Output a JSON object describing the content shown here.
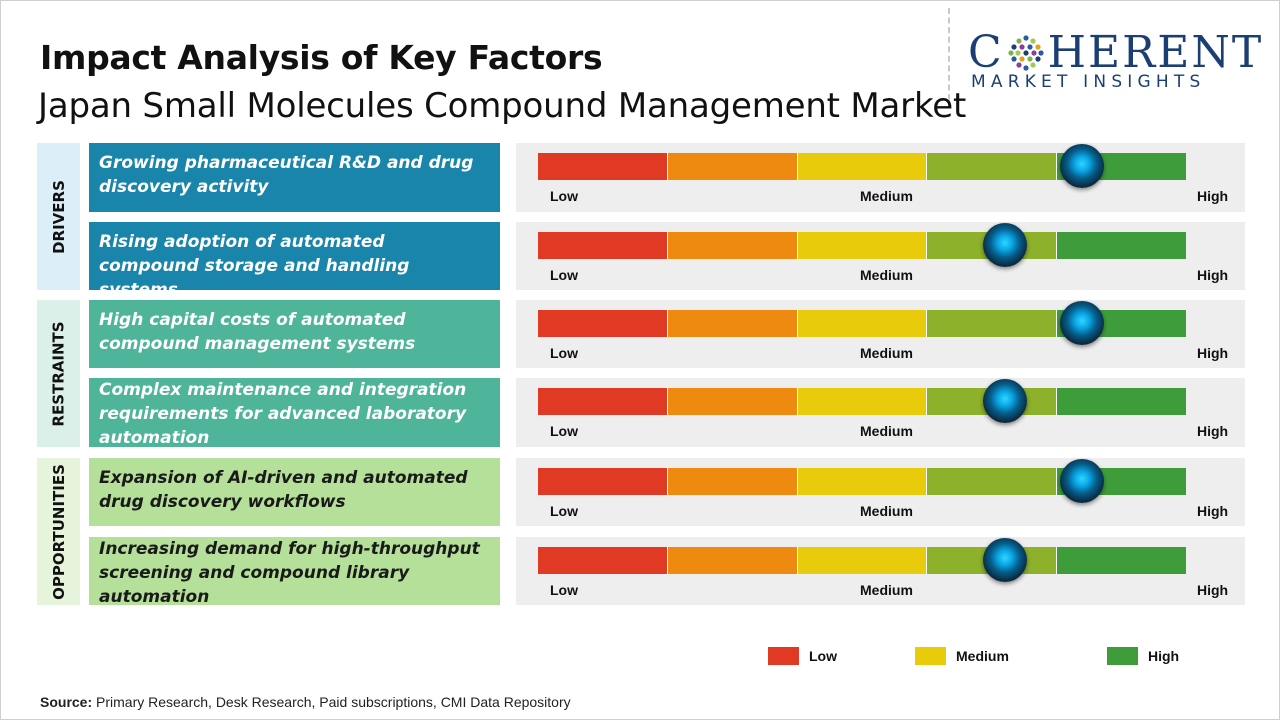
{
  "header": {
    "title": "Impact Analysis of Key Factors",
    "subtitle": "Japan Small Molecules Compound Management Market"
  },
  "logo": {
    "word_part1": "C",
    "word_part2": "HERENT",
    "tagline": "MARKET INSIGHTS"
  },
  "categories": [
    {
      "label": "DRIVERS",
      "color": "#dceef7"
    },
    {
      "label": "RESTRAINTS",
      "color": "#dcf0ea"
    },
    {
      "label": "OPPORTUNITIES",
      "color": "#e7f4dc"
    }
  ],
  "scale": {
    "low_label": "Low",
    "medium_label": "Medium",
    "high_label": "High",
    "segment_colors": [
      "#e03a24",
      "#ef8a10",
      "#e8cc0c",
      "#8db12b",
      "#3f9c3a"
    ]
  },
  "chart_data": {
    "type": "bar",
    "categories": [
      "Growing pharmaceutical R&D and drug discovery activity",
      "Rising adoption of automated compound storage and handling systems",
      "High capital costs of automated compound management systems",
      "Complex maintenance and integration requirements for advanced laboratory automation",
      "Expansion of AI-driven and automated drug discovery workflows",
      "Increasing demand for high-throughput screening and compound library automation"
    ],
    "groups": [
      "DRIVERS",
      "DRIVERS",
      "RESTRAINTS",
      "RESTRAINTS",
      "OPPORTUNITIES",
      "OPPORTUNITIES"
    ],
    "values": [
      0.84,
      0.72,
      0.84,
      0.72,
      0.84,
      0.72
    ],
    "value_scale": "0 = Low, 0.5 = Medium, 1 = High",
    "ylim": [
      0,
      1
    ]
  },
  "legend": [
    {
      "label": "Low",
      "color": "#e03a24"
    },
    {
      "label": "Medium",
      "color": "#e8cc0c"
    },
    {
      "label": "High",
      "color": "#3f9c3a"
    }
  ],
  "source": {
    "prefix": "Source:",
    "text": " Primary Research, Desk Research, Paid subscriptions, CMI Data Repository"
  }
}
